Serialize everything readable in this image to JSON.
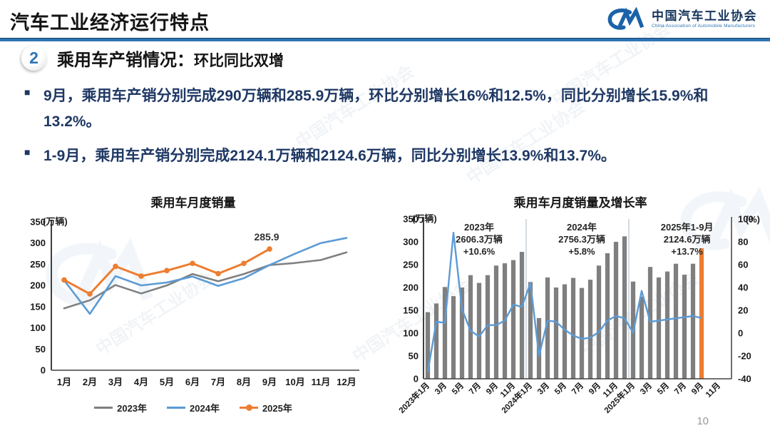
{
  "header": {
    "title": "汽车工业经济运行特点",
    "logo": {
      "org_cn": "中国汽车工业协会",
      "org_en": "China Association of Automobile Manufacturers"
    }
  },
  "section": {
    "number": "2",
    "title_main": "乘用车产销情况：",
    "title_sub": "环比同比双增"
  },
  "bullets": [
    "9月，乘用车产销分别完成290万辆和285.9万辆，环比分别增长16%和12.5%，同比分别增长15.9%和13.2%。",
    "1-9月，乘用车产销分别完成2124.1万辆和2124.6万辆，同比分别增长13.9%和13.7%。"
  ],
  "watermark": {
    "text": "中国汽车工业协会"
  },
  "page_number": "10",
  "chart_data": [
    {
      "type": "line",
      "title": "乘用车月度销量",
      "unit_label": "(万辆)",
      "categories": [
        "1月",
        "2月",
        "3月",
        "4月",
        "5月",
        "6月",
        "7月",
        "8月",
        "9月",
        "10月",
        "11月",
        "12月"
      ],
      "ylim": [
        0,
        350
      ],
      "ytick_step": 50,
      "grid": false,
      "legend_position": "bottom",
      "series": [
        {
          "name": "2023年",
          "color": "#808080",
          "values": [
            146,
            165,
            201,
            181,
            200,
            227,
            210,
            227,
            248,
            253,
            260,
            278
          ]
        },
        {
          "name": "2024年",
          "color": "#5B9BD5",
          "values": [
            212,
            133,
            222,
            200,
            207,
            221,
            199,
            217,
            248,
            275,
            300,
            312
          ]
        },
        {
          "name": "2025年",
          "color": "#ED7D31",
          "marker": true,
          "values": [
            213,
            180,
            245,
            222,
            235,
            252,
            228,
            252,
            285.9
          ],
          "last_point_label": "285.9"
        }
      ]
    },
    {
      "type": "combo-bar-line",
      "title": "乘用车月度销量及增长率",
      "left_unit": "(万辆)",
      "right_unit": "(%)",
      "left_ylim": [
        0,
        350
      ],
      "left_ytick_step": 50,
      "right_ylim": [
        -40,
        100
      ],
      "right_ytick_step": 20,
      "slots": 36,
      "tick_labels": [
        "2023年1月",
        "3月",
        "5月",
        "7月",
        "9月",
        "11月",
        "2024年1月",
        "3月",
        "5月",
        "7月",
        "9月",
        "11月",
        "2025年1月",
        "3月",
        "5月",
        "7月",
        "9月",
        "11月"
      ],
      "bars": {
        "name": "月度销量",
        "color": "#7F7F7F",
        "highlight_last_color": "#ED7D31",
        "values": [
          146,
          165,
          201,
          181,
          200,
          227,
          210,
          227,
          248,
          253,
          260,
          278,
          212,
          133,
          222,
          200,
          207,
          221,
          199,
          217,
          248,
          275,
          300,
          312,
          213,
          180,
          245,
          222,
          235,
          252,
          228,
          252,
          285.9
        ]
      },
      "line": {
        "name": "增长率",
        "color": "#5B9BD5",
        "values": [
          -34,
          10,
          9,
          88,
          21,
          2,
          -3,
          7,
          7,
          11,
          25,
          23,
          44,
          -20,
          11,
          10,
          3,
          -2,
          -5,
          -4,
          1,
          11,
          15,
          13,
          0.5,
          37,
          10,
          11,
          12,
          13,
          14,
          15,
          13.2
        ]
      },
      "dividers_after_index": [
        11,
        23
      ],
      "annotations": [
        {
          "lines": [
            "2023年",
            "2606.3万辆",
            "+10.6%"
          ]
        },
        {
          "lines": [
            "2024年",
            "2756.3万辆",
            "+5.8%"
          ]
        },
        {
          "lines": [
            "2025年1-9月",
            "2124.6万辆",
            "+13.7%"
          ]
        }
      ]
    }
  ],
  "colors": {
    "accent_blue": "#2E74B5",
    "navy_text": "#1F3864",
    "logo_blue": "#1B62A8"
  }
}
